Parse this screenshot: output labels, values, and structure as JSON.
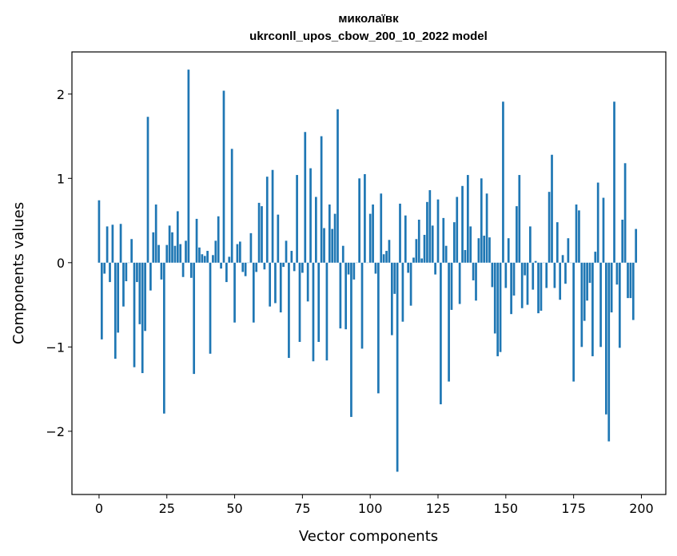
{
  "chart_data": {
    "type": "bar",
    "title": "миколаївк",
    "subtitle": "ukrconll_upos_cbow_200_10_2022 model",
    "xlabel": "Vector components",
    "ylabel": "Components values",
    "xlim": [
      -10,
      209
    ],
    "ylim": [
      -2.75,
      2.5
    ],
    "xticks": [
      0,
      25,
      50,
      75,
      100,
      125,
      150,
      175,
      200
    ],
    "xtick_labels": [
      "0",
      "25",
      "50",
      "75",
      "100",
      "125",
      "150",
      "175",
      "200"
    ],
    "yticks": [
      -2,
      -1,
      0,
      1,
      2
    ],
    "ytick_labels": [
      "−2",
      "−1",
      "0",
      "1",
      "2"
    ],
    "grid": false,
    "bar_color": "#1f77b4",
    "values": [
      0.74,
      -0.91,
      -0.13,
      0.43,
      -0.23,
      0.45,
      -1.14,
      -0.83,
      0.46,
      -0.52,
      -0.22,
      0.0,
      0.28,
      -1.24,
      -0.23,
      -0.73,
      -1.31,
      -0.81,
      1.73,
      -0.33,
      0.36,
      0.69,
      0.21,
      -0.2,
      -1.79,
      0.21,
      0.44,
      0.36,
      0.2,
      0.61,
      0.22,
      -0.17,
      0.26,
      2.29,
      -0.18,
      -1.32,
      0.52,
      0.18,
      0.1,
      0.08,
      0.14,
      -1.08,
      0.09,
      0.26,
      0.55,
      -0.07,
      2.04,
      -0.23,
      0.07,
      1.35,
      -0.71,
      0.22,
      0.25,
      -0.11,
      -0.16,
      0.0,
      0.35,
      -0.71,
      -0.11,
      0.71,
      0.67,
      -0.08,
      1.02,
      -0.52,
      1.1,
      -0.48,
      0.57,
      -0.59,
      -0.05,
      0.26,
      -1.13,
      0.14,
      -0.1,
      1.04,
      -0.94,
      -0.12,
      1.55,
      -0.46,
      1.12,
      -1.17,
      0.78,
      -0.94,
      1.5,
      0.41,
      -1.16,
      0.69,
      0.4,
      0.58,
      1.82,
      -0.78,
      0.2,
      -0.79,
      -0.14,
      -1.83,
      -0.2,
      0.0,
      1.0,
      -1.02,
      1.05,
      0.0,
      0.58,
      0.69,
      -0.13,
      -1.55,
      0.82,
      0.1,
      0.14,
      0.27,
      -0.86,
      -0.37,
      -2.48,
      0.7,
      -0.7,
      0.56,
      -0.12,
      -0.51,
      0.06,
      0.28,
      0.51,
      0.05,
      0.33,
      0.72,
      0.86,
      0.44,
      -0.14,
      0.75,
      -1.68,
      0.53,
      0.2,
      -1.41,
      -0.56,
      0.48,
      0.78,
      -0.49,
      0.91,
      0.15,
      1.04,
      0.43,
      -0.21,
      -0.45,
      0.29,
      1.0,
      0.32,
      0.82,
      0.3,
      -0.29,
      -0.84,
      -1.11,
      -1.06,
      1.91,
      -0.3,
      0.29,
      -0.61,
      -0.39,
      0.67,
      1.04,
      -0.54,
      -0.15,
      -0.5,
      0.43,
      -0.32,
      0.02,
      -0.6,
      -0.57,
      0.0,
      -0.3,
      0.84,
      1.28,
      -0.3,
      0.48,
      -0.44,
      0.09,
      -0.25,
      0.29,
      0.0,
      -1.41,
      0.69,
      0.62,
      -1.0,
      -0.69,
      -0.45,
      -0.24,
      -1.11,
      0.13,
      0.95,
      -1.0,
      0.77,
      -1.8,
      -2.12,
      -0.59,
      1.91,
      -0.26,
      -1.01,
      0.51,
      1.18,
      -0.42,
      -0.42,
      -0.68,
      0.4
    ]
  }
}
